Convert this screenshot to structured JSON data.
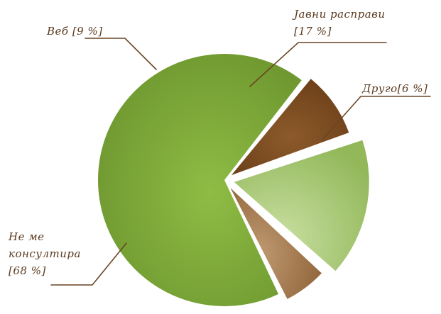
{
  "chart_data": {
    "type": "pie",
    "title": "",
    "exploded": true,
    "categories": [
      "Не ме консултира",
      "Веб",
      "Јавни расправи",
      "Друго"
    ],
    "values": [
      68,
      9,
      17,
      6
    ],
    "unit": "%",
    "data_labels": [
      {
        "lines": [
          "Не ме",
          "консултира",
          "[68 %]"
        ]
      },
      {
        "lines": [
          "Веб [9 %]"
        ]
      },
      {
        "lines": [
          "Јавни расправи",
          "[17 %]"
        ]
      },
      {
        "lines": [
          "Друго[6 %]"
        ]
      }
    ],
    "colors": [
      "#7ea53a",
      "#7a4a1f",
      "#a9c96b",
      "#a07448"
    ],
    "legend": "none"
  }
}
